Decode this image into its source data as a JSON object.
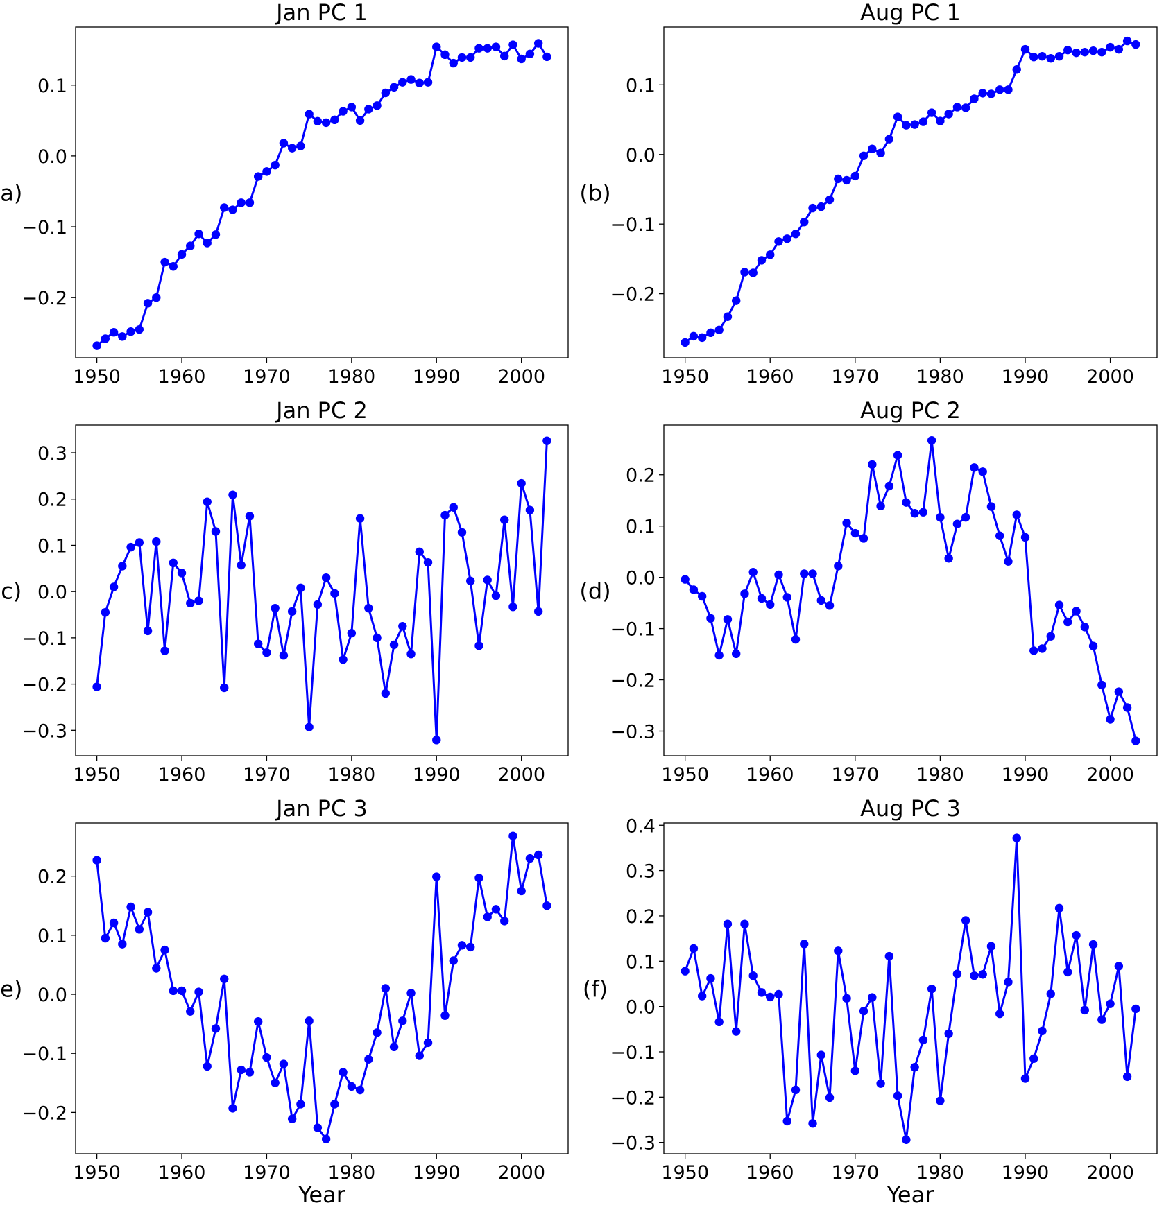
{
  "figure": {
    "line_color": "#0000ff",
    "x_axis_label": "Year"
  },
  "chart_data": [
    {
      "type": "line",
      "title": "Jan PC 1",
      "panel_label": "(a)",
      "xlabel": "",
      "ylabel": "(a)",
      "xlim": [
        1947.5,
        2005.5
      ],
      "ylim": [
        -0.285,
        0.182
      ],
      "xticks": [
        1950,
        1960,
        1970,
        1980,
        1990,
        2000
      ],
      "yticks": [
        -0.2,
        -0.1,
        0.0,
        0.1
      ],
      "ytick_labels": [
        "−0.2",
        "−0.1",
        "0.0",
        "0.1"
      ],
      "x_start": 1950,
      "values": [
        -0.268,
        -0.258,
        -0.249,
        -0.255,
        -0.248,
        -0.245,
        -0.208,
        -0.2,
        -0.15,
        -0.156,
        -0.139,
        -0.127,
        -0.11,
        -0.123,
        -0.111,
        -0.073,
        -0.076,
        -0.066,
        -0.066,
        -0.029,
        -0.022,
        -0.013,
        0.018,
        0.011,
        0.014,
        0.059,
        0.049,
        0.047,
        0.051,
        0.063,
        0.069,
        0.05,
        0.066,
        0.071,
        0.089,
        0.097,
        0.104,
        0.108,
        0.103,
        0.104,
        0.154,
        0.143,
        0.131,
        0.139,
        0.139,
        0.152,
        0.152,
        0.154,
        0.141,
        0.157,
        0.137,
        0.144,
        0.159,
        0.14
      ]
    },
    {
      "type": "line",
      "title": "Aug PC 1",
      "panel_label": "(b)",
      "xlabel": "",
      "ylabel": "(b)",
      "xlim": [
        1947.5,
        2005.5
      ],
      "ylim": [
        -0.292,
        0.183
      ],
      "xticks": [
        1950,
        1960,
        1970,
        1980,
        1990,
        2000
      ],
      "yticks": [
        -0.2,
        -0.1,
        0.0,
        0.1
      ],
      "ytick_labels": [
        "−0.2",
        "−0.1",
        "0.0",
        "0.1"
      ],
      "x_start": 1950,
      "values": [
        -0.27,
        -0.261,
        -0.263,
        -0.256,
        -0.252,
        -0.233,
        -0.21,
        -0.169,
        -0.17,
        -0.152,
        -0.144,
        -0.125,
        -0.121,
        -0.114,
        -0.097,
        -0.077,
        -0.075,
        -0.065,
        -0.035,
        -0.037,
        -0.031,
        -0.002,
        0.008,
        0.002,
        0.022,
        0.054,
        0.042,
        0.043,
        0.047,
        0.06,
        0.048,
        0.058,
        0.068,
        0.067,
        0.08,
        0.088,
        0.087,
        0.093,
        0.093,
        0.122,
        0.151,
        0.14,
        0.141,
        0.138,
        0.141,
        0.15,
        0.146,
        0.147,
        0.149,
        0.147,
        0.154,
        0.151,
        0.163,
        0.158
      ]
    },
    {
      "type": "line",
      "title": "Jan PC 2",
      "panel_label": "(c)",
      "xlabel": "",
      "ylabel": "(c)",
      "xlim": [
        1947.5,
        2005.5
      ],
      "ylim": [
        -0.355,
        0.36
      ],
      "xticks": [
        1950,
        1960,
        1970,
        1980,
        1990,
        2000
      ],
      "yticks": [
        -0.3,
        -0.2,
        -0.1,
        0.0,
        0.1,
        0.2,
        0.3
      ],
      "ytick_labels": [
        "−0.3",
        "−0.2",
        "−0.1",
        "0.0",
        "0.1",
        "0.2",
        "0.3"
      ],
      "x_start": 1950,
      "values": [
        -0.206,
        -0.045,
        0.01,
        0.055,
        0.096,
        0.106,
        -0.085,
        0.108,
        -0.128,
        0.062,
        0.04,
        -0.025,
        -0.02,
        0.194,
        0.13,
        -0.208,
        0.209,
        0.057,
        0.163,
        -0.113,
        -0.132,
        -0.036,
        -0.138,
        -0.043,
        0.008,
        -0.293,
        -0.028,
        0.03,
        -0.004,
        -0.147,
        -0.09,
        0.158,
        -0.036,
        -0.1,
        -0.22,
        -0.115,
        -0.075,
        -0.135,
        0.086,
        0.063,
        -0.321,
        0.165,
        0.182,
        0.128,
        0.023,
        -0.117,
        0.025,
        -0.009,
        0.155,
        -0.033,
        0.234,
        0.176,
        -0.043,
        0.326
      ]
    },
    {
      "type": "line",
      "title": "Aug PC 2",
      "panel_label": "(d)",
      "xlabel": "",
      "ylabel": "(d)",
      "xlim": [
        1947.5,
        2005.5
      ],
      "ylim": [
        -0.348,
        0.297
      ],
      "xticks": [
        1950,
        1960,
        1970,
        1980,
        1990,
        2000
      ],
      "yticks": [
        -0.3,
        -0.2,
        -0.1,
        0.0,
        0.1,
        0.2
      ],
      "ytick_labels": [
        "−0.3",
        "−0.2",
        "−0.1",
        "0.0",
        "0.1",
        "0.2"
      ],
      "x_start": 1950,
      "values": [
        -0.004,
        -0.024,
        -0.037,
        -0.08,
        -0.152,
        -0.082,
        -0.149,
        -0.032,
        0.01,
        -0.041,
        -0.053,
        0.005,
        -0.039,
        -0.121,
        0.007,
        0.007,
        -0.045,
        -0.055,
        0.022,
        0.106,
        0.086,
        0.076,
        0.22,
        0.139,
        0.178,
        0.238,
        0.146,
        0.125,
        0.127,
        0.267,
        0.117,
        0.037,
        0.104,
        0.117,
        0.214,
        0.206,
        0.138,
        0.081,
        0.031,
        0.122,
        0.078,
        -0.143,
        -0.139,
        -0.115,
        -0.054,
        -0.087,
        -0.066,
        -0.097,
        -0.134,
        -0.21,
        -0.277,
        -0.223,
        -0.254,
        -0.319
      ]
    },
    {
      "type": "line",
      "title": "Jan PC 3",
      "panel_label": "(e)",
      "xlabel": "Year",
      "ylabel": "(e)",
      "xlim": [
        1947.5,
        2005.5
      ],
      "ylim": [
        -0.27,
        0.29
      ],
      "xticks": [
        1950,
        1960,
        1970,
        1980,
        1990,
        2000
      ],
      "yticks": [
        -0.2,
        -0.1,
        0.0,
        0.1,
        0.2
      ],
      "ytick_labels": [
        "−0.2",
        "−0.1",
        "0.0",
        "0.1",
        "0.2"
      ],
      "x_start": 1950,
      "values": [
        0.227,
        0.095,
        0.121,
        0.085,
        0.148,
        0.11,
        0.139,
        0.044,
        0.075,
        0.006,
        0.006,
        -0.029,
        0.004,
        -0.122,
        -0.058,
        0.026,
        -0.193,
        -0.128,
        -0.132,
        -0.046,
        -0.107,
        -0.15,
        -0.118,
        -0.211,
        -0.186,
        -0.045,
        -0.226,
        -0.245,
        -0.186,
        -0.132,
        -0.156,
        -0.162,
        -0.11,
        -0.065,
        0.01,
        -0.089,
        -0.045,
        0.002,
        -0.104,
        -0.082,
        0.199,
        -0.036,
        0.057,
        0.083,
        0.08,
        0.197,
        0.131,
        0.144,
        0.124,
        0.268,
        0.175,
        0.23,
        0.236,
        0.15
      ]
    },
    {
      "type": "line",
      "title": "Aug PC 3",
      "panel_label": "(f)",
      "xlabel": "Year",
      "ylabel": "(f)",
      "xlim": [
        1947.5,
        2005.5
      ],
      "ylim": [
        -0.325,
        0.405
      ],
      "xticks": [
        1950,
        1960,
        1970,
        1980,
        1990,
        2000
      ],
      "yticks": [
        -0.3,
        -0.2,
        -0.1,
        0.0,
        0.1,
        0.2,
        0.3,
        0.4
      ],
      "ytick_labels": [
        "−0.3",
        "−0.2",
        "−0.1",
        "0.0",
        "0.1",
        "0.2",
        "0.3",
        "0.4"
      ],
      "x_start": 1950,
      "values": [
        0.078,
        0.128,
        0.023,
        0.062,
        -0.034,
        0.182,
        -0.055,
        0.182,
        0.068,
        0.031,
        0.021,
        0.027,
        -0.253,
        -0.184,
        0.138,
        -0.258,
        -0.107,
        -0.201,
        0.123,
        0.018,
        -0.142,
        -0.01,
        0.02,
        -0.17,
        0.111,
        -0.197,
        -0.294,
        -0.134,
        -0.074,
        0.039,
        -0.208,
        -0.06,
        0.072,
        0.19,
        0.068,
        0.071,
        0.133,
        -0.016,
        0.054,
        0.372,
        -0.159,
        -0.115,
        -0.054,
        0.028,
        0.217,
        0.076,
        0.157,
        -0.008,
        0.137,
        -0.029,
        0.006,
        0.089,
        -0.155,
        -0.005
      ]
    }
  ]
}
